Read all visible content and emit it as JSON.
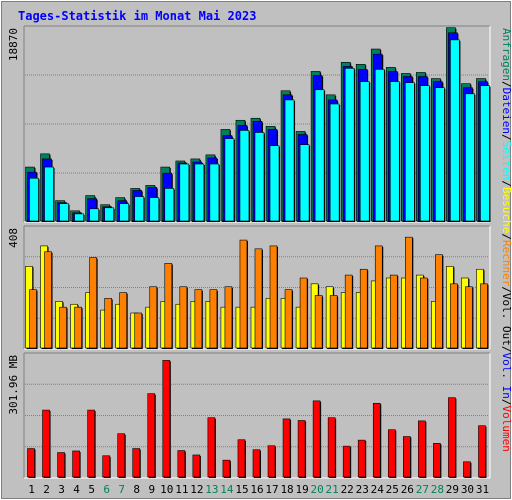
{
  "title": "Tages-Statistik im Monat Mai 2023",
  "colors": {
    "page_bg": "#C0C0C0",
    "title": "#0000FF",
    "plot_bg": "#C0C0C0",
    "hits": "#00805C",
    "files": "#0000FF",
    "pages": "#00FFFF",
    "visits": "#FFFF00",
    "sites": "#FF8000",
    "volume": "#FF0000",
    "weekend": "#00805C",
    "weekday": "#000000"
  },
  "legend_right_top": [
    {
      "text": "Anfragen",
      "color": "#00805C"
    },
    {
      "text": "/",
      "color": "#000000"
    },
    {
      "text": "Dateien",
      "color": "#0000FF"
    },
    {
      "text": "/",
      "color": "#000000"
    },
    {
      "text": "Seiten",
      "color": "#00FFFF"
    },
    {
      "text": "/",
      "color": "#000000"
    },
    {
      "text": "Besuche",
      "color": "#FFFF00"
    },
    {
      "text": "/",
      "color": "#000000"
    },
    {
      "text": "Rechner",
      "color": "#FF8000"
    },
    {
      "text": "/",
      "color": "#000000"
    },
    {
      "text": "Vol. Out",
      "color": "#000000"
    },
    {
      "text": "/",
      "color": "#000000"
    },
    {
      "text": "Vol. In",
      "color": "#0000FF"
    },
    {
      "text": "/",
      "color": "#000000"
    },
    {
      "text": "Volumen",
      "color": "#FF0000"
    }
  ],
  "chart_data": [
    {
      "type": "bar",
      "panel": "top",
      "ylabel": "18870",
      "ymax": 18870,
      "categories": [
        "1",
        "2",
        "3",
        "4",
        "5",
        "6",
        "7",
        "8",
        "9",
        "10",
        "11",
        "12",
        "13",
        "14",
        "15",
        "16",
        "17",
        "18",
        "19",
        "20",
        "21",
        "22",
        "23",
        "24",
        "25",
        "26",
        "27",
        "28",
        "29",
        "30",
        "31"
      ],
      "series": [
        {
          "name": "Anfragen",
          "values": [
            5300,
            6600,
            2000,
            1000,
            2500,
            1600,
            2300,
            3200,
            3500,
            5300,
            5900,
            6100,
            6500,
            9000,
            9900,
            10100,
            9300,
            12800,
            8800,
            14700,
            12400,
            15600,
            15400,
            16900,
            15100,
            14500,
            14600,
            14000,
            19000,
            13500,
            14000
          ]
        },
        {
          "name": "Dateien",
          "values": [
            4800,
            6100,
            1800,
            800,
            2200,
            1400,
            2000,
            3000,
            3300,
            4700,
            5700,
            5800,
            6200,
            8400,
            9400,
            9800,
            9000,
            12400,
            8500,
            14300,
            11900,
            15200,
            14900,
            16400,
            14700,
            14200,
            14200,
            13700,
            18500,
            13100,
            13700
          ]
        },
        {
          "name": "Seiten",
          "values": [
            4200,
            5300,
            1700,
            700,
            1200,
            1300,
            1700,
            2400,
            2300,
            3200,
            5600,
            5600,
            5600,
            8100,
            8900,
            8700,
            7400,
            11900,
            7500,
            12900,
            11500,
            15000,
            13700,
            14900,
            13700,
            13600,
            13300,
            13100,
            17800,
            12500,
            13300
          ]
        }
      ]
    },
    {
      "type": "bar",
      "panel": "middle",
      "ylabel": "408",
      "ymax": 408,
      "categories": [
        "1",
        "2",
        "3",
        "4",
        "5",
        "6",
        "7",
        "8",
        "9",
        "10",
        "11",
        "12",
        "13",
        "14",
        "15",
        "16",
        "17",
        "18",
        "19",
        "20",
        "21",
        "22",
        "23",
        "24",
        "25",
        "26",
        "27",
        "28",
        "29",
        "30",
        "31"
      ],
      "series": [
        {
          "name": "Besuche",
          "values": [
            280,
            350,
            160,
            150,
            190,
            130,
            150,
            120,
            140,
            160,
            150,
            160,
            160,
            140,
            140,
            140,
            170,
            170,
            140,
            220,
            210,
            190,
            190,
            230,
            240,
            240,
            250,
            160,
            280,
            240,
            270
          ]
        },
        {
          "name": "Rechner",
          "values": [
            200,
            330,
            140,
            140,
            310,
            170,
            190,
            120,
            210,
            290,
            210,
            200,
            200,
            210,
            370,
            340,
            350,
            200,
            240,
            180,
            180,
            250,
            270,
            350,
            250,
            380,
            240,
            320,
            220,
            210,
            220
          ]
        }
      ]
    },
    {
      "type": "bar",
      "panel": "bottom",
      "ylabel": "301.96 MB",
      "ymax": 301.96,
      "categories": [
        "1",
        "2",
        "3",
        "4",
        "5",
        "6",
        "7",
        "8",
        "9",
        "10",
        "11",
        "12",
        "13",
        "14",
        "15",
        "16",
        "17",
        "18",
        "19",
        "20",
        "21",
        "22",
        "23",
        "24",
        "25",
        "26",
        "27",
        "28",
        "29",
        "30",
        "31"
      ],
      "series": [
        {
          "name": "Volumen",
          "values": [
            71,
            167,
            61,
            65,
            167,
            53,
            108,
            71,
            208,
            291,
            66,
            55,
            148,
            42,
            93,
            68,
            78,
            145,
            141,
            190,
            148,
            77,
            92,
            184,
            118,
            101,
            140,
            84,
            198,
            38,
            128
          ]
        }
      ]
    }
  ],
  "x_axis": {
    "labels": [
      "1",
      "2",
      "3",
      "4",
      "5",
      "6",
      "7",
      "8",
      "9",
      "10",
      "11",
      "12",
      "13",
      "14",
      "15",
      "16",
      "17",
      "18",
      "19",
      "20",
      "21",
      "22",
      "23",
      "24",
      "25",
      "26",
      "27",
      "28",
      "29",
      "30",
      "31"
    ],
    "weekend": [
      "6",
      "7",
      "13",
      "14",
      "20",
      "21",
      "27",
      "28"
    ]
  }
}
